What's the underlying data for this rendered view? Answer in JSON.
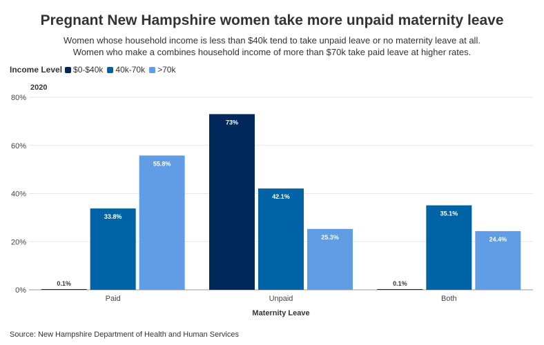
{
  "title": "Pregnant New Hampshire women take more unpaid maternity leave",
  "subtitle_lines": [
    "Women whose household income is less than $40k tend to take unpaid leave or no maternity leave at all.",
    "Women who make a combines household income of more than $70k take paid leave at higher rates."
  ],
  "legend": {
    "title": "Income Level",
    "items": [
      "$0-$40k",
      "40k-70k",
      ">70k"
    ]
  },
  "year_label": "2020",
  "source": "Source: New Hampshire Department of Health and Human Services",
  "colors": {
    "series": [
      "#00285a",
      "#0063a5",
      "#619de4"
    ],
    "grid": "#e6e6e6",
    "axis": "#999999"
  },
  "chart_data": {
    "type": "bar",
    "categories": [
      "Paid",
      "Unpaid",
      "Both"
    ],
    "series": [
      {
        "name": "$0-$40k",
        "values": [
          0.1,
          73,
          0.1
        ],
        "labels": [
          "0.1%",
          "73%",
          "0.1%"
        ]
      },
      {
        "name": "40k-70k",
        "values": [
          33.8,
          42.1,
          35.1
        ],
        "labels": [
          "33.8%",
          "42.1%",
          "35.1%"
        ]
      },
      {
        "name": ">70k",
        "values": [
          55.8,
          25.3,
          24.4
        ],
        "labels": [
          "55.8%",
          "25.3%",
          "24.4%"
        ]
      }
    ],
    "xlabel": "Maternity Leave",
    "ylabel": "",
    "ylim": [
      0,
      80
    ],
    "yticks": [
      0,
      20,
      40,
      60,
      80
    ],
    "ytick_labels": [
      "0%",
      "20%",
      "40%",
      "60%",
      "80%"
    ],
    "grid": true,
    "legend_position": "top-left"
  }
}
